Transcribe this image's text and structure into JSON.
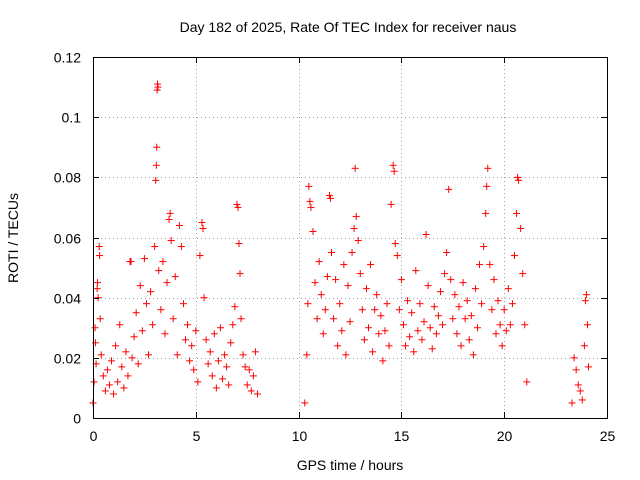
{
  "chart_data": {
    "type": "scatter",
    "title": "Day 182 of 2025, Rate Of TEC Index for receiver naus",
    "xlabel": "GPS time / hours",
    "ylabel": "ROTI / TECUs",
    "xlim": [
      0,
      25
    ],
    "ylim": [
      0,
      0.12
    ],
    "xticks": [
      0,
      5,
      10,
      15,
      20,
      25
    ],
    "xtick_labels": [
      "0",
      "5",
      "10",
      "15",
      "20",
      "25"
    ],
    "yticks": [
      0,
      0.02,
      0.04,
      0.06,
      0.08,
      0.1,
      0.12
    ],
    "ytick_labels": [
      "0",
      "0.02",
      "0.04",
      "0.06",
      "0.08",
      "0.1",
      "0.12"
    ],
    "grid": true,
    "marker": "+",
    "color": "#ff0000",
    "series": [
      {
        "points": [
          [
            0.0,
            0.005
          ],
          [
            0.05,
            0.012
          ],
          [
            0.1,
            0.03
          ],
          [
            0.12,
            0.025
          ],
          [
            0.15,
            0.018
          ],
          [
            0.2,
            0.043
          ],
          [
            0.22,
            0.045
          ],
          [
            0.25,
            0.04
          ],
          [
            0.3,
            0.057
          ],
          [
            0.32,
            0.054
          ],
          [
            0.35,
            0.033
          ],
          [
            0.4,
            0.021
          ],
          [
            0.5,
            0.014
          ],
          [
            0.6,
            0.009
          ],
          [
            0.7,
            0.016
          ],
          [
            0.8,
            0.011
          ],
          [
            0.9,
            0.019
          ],
          [
            1.0,
            0.008
          ],
          [
            1.1,
            0.024
          ],
          [
            1.2,
            0.012
          ],
          [
            1.3,
            0.031
          ],
          [
            1.4,
            0.017
          ],
          [
            1.5,
            0.01
          ],
          [
            1.6,
            0.022
          ],
          [
            1.7,
            0.014
          ],
          [
            1.8,
            0.052
          ],
          [
            1.85,
            0.052
          ],
          [
            1.9,
            0.02
          ],
          [
            2.0,
            0.027
          ],
          [
            2.1,
            0.035
          ],
          [
            2.2,
            0.018
          ],
          [
            2.3,
            0.044
          ],
          [
            2.4,
            0.029
          ],
          [
            2.5,
            0.053
          ],
          [
            2.6,
            0.038
          ],
          [
            2.7,
            0.021
          ],
          [
            2.8,
            0.042
          ],
          [
            2.9,
            0.031
          ],
          [
            3.0,
            0.057
          ],
          [
            3.05,
            0.079
          ],
          [
            3.08,
            0.084
          ],
          [
            3.1,
            0.09
          ],
          [
            3.12,
            0.109
          ],
          [
            3.14,
            0.111
          ],
          [
            3.16,
            0.11
          ],
          [
            3.2,
            0.049
          ],
          [
            3.3,
            0.036
          ],
          [
            3.4,
            0.052
          ],
          [
            3.5,
            0.028
          ],
          [
            3.6,
            0.045
          ],
          [
            3.7,
            0.066
          ],
          [
            3.75,
            0.068
          ],
          [
            3.8,
            0.059
          ],
          [
            3.9,
            0.033
          ],
          [
            4.0,
            0.047
          ],
          [
            4.1,
            0.021
          ],
          [
            4.2,
            0.064
          ],
          [
            4.3,
            0.057
          ],
          [
            4.4,
            0.038
          ],
          [
            4.5,
            0.026
          ],
          [
            4.6,
            0.031
          ],
          [
            4.7,
            0.019
          ],
          [
            4.8,
            0.024
          ],
          [
            4.9,
            0.016
          ],
          [
            5.0,
            0.029
          ],
          [
            5.1,
            0.012
          ],
          [
            5.2,
            0.054
          ],
          [
            5.3,
            0.065
          ],
          [
            5.35,
            0.063
          ],
          [
            5.4,
            0.04
          ],
          [
            5.5,
            0.026
          ],
          [
            5.6,
            0.018
          ],
          [
            5.7,
            0.022
          ],
          [
            5.8,
            0.014
          ],
          [
            5.9,
            0.028
          ],
          [
            6.0,
            0.01
          ],
          [
            6.1,
            0.019
          ],
          [
            6.2,
            0.03
          ],
          [
            6.3,
            0.013
          ],
          [
            6.4,
            0.021
          ],
          [
            6.5,
            0.017
          ],
          [
            6.6,
            0.011
          ],
          [
            6.7,
            0.025
          ],
          [
            6.8,
            0.031
          ],
          [
            6.9,
            0.037
          ],
          [
            7.0,
            0.071
          ],
          [
            7.05,
            0.07
          ],
          [
            7.1,
            0.058
          ],
          [
            7.15,
            0.048
          ],
          [
            7.2,
            0.033
          ],
          [
            7.3,
            0.021
          ],
          [
            7.4,
            0.017
          ],
          [
            7.5,
            0.011
          ],
          [
            7.6,
            0.016
          ],
          [
            7.7,
            0.009
          ],
          [
            7.8,
            0.014
          ],
          [
            7.9,
            0.022
          ],
          [
            8.0,
            0.008
          ],
          [
            10.3,
            0.005
          ],
          [
            10.4,
            0.021
          ],
          [
            10.45,
            0.038
          ],
          [
            10.5,
            0.077
          ],
          [
            10.55,
            0.072
          ],
          [
            10.6,
            0.07
          ],
          [
            10.7,
            0.062
          ],
          [
            10.8,
            0.045
          ],
          [
            10.9,
            0.033
          ],
          [
            11.0,
            0.052
          ],
          [
            11.1,
            0.041
          ],
          [
            11.2,
            0.028
          ],
          [
            11.3,
            0.036
          ],
          [
            11.4,
            0.047
          ],
          [
            11.5,
            0.074
          ],
          [
            11.55,
            0.073
          ],
          [
            11.6,
            0.055
          ],
          [
            11.7,
            0.033
          ],
          [
            11.8,
            0.046
          ],
          [
            11.9,
            0.024
          ],
          [
            12.0,
            0.038
          ],
          [
            12.1,
            0.029
          ],
          [
            12.2,
            0.051
          ],
          [
            12.3,
            0.021
          ],
          [
            12.4,
            0.044
          ],
          [
            12.5,
            0.032
          ],
          [
            12.6,
            0.055
          ],
          [
            12.7,
            0.063
          ],
          [
            12.75,
            0.083
          ],
          [
            12.8,
            0.067
          ],
          [
            12.9,
            0.059
          ],
          [
            13.0,
            0.048
          ],
          [
            13.1,
            0.036
          ],
          [
            13.2,
            0.026
          ],
          [
            13.3,
            0.043
          ],
          [
            13.4,
            0.03
          ],
          [
            13.5,
            0.051
          ],
          [
            13.6,
            0.022
          ],
          [
            13.7,
            0.036
          ],
          [
            13.8,
            0.041
          ],
          [
            13.9,
            0.028
          ],
          [
            14.0,
            0.034
          ],
          [
            14.1,
            0.019
          ],
          [
            14.2,
            0.029
          ],
          [
            14.3,
            0.038
          ],
          [
            14.4,
            0.024
          ],
          [
            14.5,
            0.071
          ],
          [
            14.6,
            0.084
          ],
          [
            14.65,
            0.082
          ],
          [
            14.7,
            0.058
          ],
          [
            14.8,
            0.054
          ],
          [
            14.9,
            0.036
          ],
          [
            15.0,
            0.046
          ],
          [
            15.1,
            0.031
          ],
          [
            15.2,
            0.024
          ],
          [
            15.3,
            0.039
          ],
          [
            15.4,
            0.027
          ],
          [
            15.5,
            0.035
          ],
          [
            15.6,
            0.022
          ],
          [
            15.7,
            0.049
          ],
          [
            15.8,
            0.029
          ],
          [
            15.9,
            0.038
          ],
          [
            16.0,
            0.026
          ],
          [
            16.1,
            0.032
          ],
          [
            16.2,
            0.061
          ],
          [
            16.3,
            0.044
          ],
          [
            16.4,
            0.03
          ],
          [
            16.5,
            0.023
          ],
          [
            16.6,
            0.037
          ],
          [
            16.7,
            0.028
          ],
          [
            16.8,
            0.034
          ],
          [
            16.9,
            0.042
          ],
          [
            17.0,
            0.031
          ],
          [
            17.1,
            0.048
          ],
          [
            17.2,
            0.055
          ],
          [
            17.3,
            0.076
          ],
          [
            17.4,
            0.046
          ],
          [
            17.5,
            0.033
          ],
          [
            17.6,
            0.041
          ],
          [
            17.7,
            0.028
          ],
          [
            17.8,
            0.037
          ],
          [
            17.9,
            0.024
          ],
          [
            18.0,
            0.045
          ],
          [
            18.1,
            0.033
          ],
          [
            18.2,
            0.039
          ],
          [
            18.3,
            0.026
          ],
          [
            18.4,
            0.034
          ],
          [
            18.5,
            0.021
          ],
          [
            18.6,
            0.043
          ],
          [
            18.7,
            0.03
          ],
          [
            18.8,
            0.051
          ],
          [
            18.9,
            0.038
          ],
          [
            19.0,
            0.057
          ],
          [
            19.1,
            0.068
          ],
          [
            19.15,
            0.077
          ],
          [
            19.2,
            0.083
          ],
          [
            19.3,
            0.051
          ],
          [
            19.4,
            0.036
          ],
          [
            19.5,
            0.046
          ],
          [
            19.6,
            0.028
          ],
          [
            19.7,
            0.039
          ],
          [
            19.8,
            0.031
          ],
          [
            19.9,
            0.024
          ],
          [
            20.0,
            0.036
          ],
          [
            20.1,
            0.029
          ],
          [
            20.2,
            0.043
          ],
          [
            20.3,
            0.031
          ],
          [
            20.4,
            0.038
          ],
          [
            20.5,
            0.054
          ],
          [
            20.6,
            0.068
          ],
          [
            20.65,
            0.08
          ],
          [
            20.7,
            0.079
          ],
          [
            20.8,
            0.063
          ],
          [
            20.9,
            0.048
          ],
          [
            21.0,
            0.031
          ],
          [
            21.1,
            0.012
          ],
          [
            23.3,
            0.005
          ],
          [
            23.4,
            0.02
          ],
          [
            23.5,
            0.016
          ],
          [
            23.6,
            0.011
          ],
          [
            23.7,
            0.009
          ],
          [
            23.8,
            0.006
          ],
          [
            23.9,
            0.024
          ],
          [
            23.95,
            0.039
          ],
          [
            24.0,
            0.041
          ],
          [
            24.05,
            0.031
          ],
          [
            24.1,
            0.017
          ]
        ]
      }
    ]
  }
}
